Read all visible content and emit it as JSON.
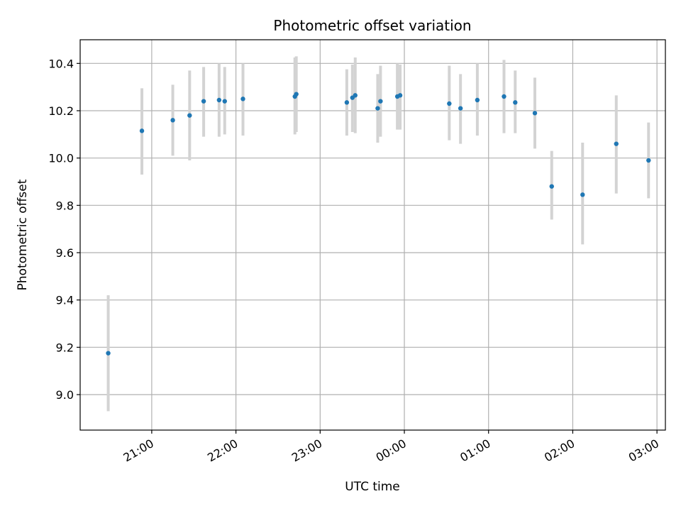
{
  "chart_data": {
    "type": "scatter",
    "title": "Photometric offset variation",
    "xlabel": "UTC time",
    "ylabel": "Photometric offset",
    "xlim": [
      "20:09",
      "03:06"
    ],
    "ylim": [
      8.85,
      10.5
    ],
    "x_ticks": [
      "21:00",
      "22:00",
      "23:00",
      "00:00",
      "01:00",
      "02:00",
      "03:00"
    ],
    "y_ticks": [
      "9.0",
      "9.2",
      "9.4",
      "9.6",
      "9.8",
      "10.0",
      "10.2",
      "10.4"
    ],
    "grid": true,
    "marker_color": "#1f77b4",
    "errorbar_color": "#d3d3d3",
    "points": [
      {
        "t": "20:29",
        "y": 9.175,
        "lo": 8.93,
        "hi": 9.42
      },
      {
        "t": "20:53",
        "y": 10.115,
        "lo": 9.93,
        "hi": 10.295
      },
      {
        "t": "21:15",
        "y": 10.16,
        "lo": 10.01,
        "hi": 10.31
      },
      {
        "t": "21:27",
        "y": 10.18,
        "lo": 9.99,
        "hi": 10.37
      },
      {
        "t": "21:37",
        "y": 10.24,
        "lo": 10.09,
        "hi": 10.385
      },
      {
        "t": "21:48",
        "y": 10.245,
        "lo": 10.09,
        "hi": 10.4
      },
      {
        "t": "21:52",
        "y": 10.24,
        "lo": 10.1,
        "hi": 10.385
      },
      {
        "t": "22:05",
        "y": 10.25,
        "lo": 10.095,
        "hi": 10.4
      },
      {
        "t": "22:42",
        "y": 10.26,
        "lo": 10.1,
        "hi": 10.425
      },
      {
        "t": "22:43",
        "y": 10.27,
        "lo": 10.11,
        "hi": 10.43
      },
      {
        "t": "23:19",
        "y": 10.235,
        "lo": 10.095,
        "hi": 10.375
      },
      {
        "t": "23:23",
        "y": 10.255,
        "lo": 10.11,
        "hi": 10.395
      },
      {
        "t": "23:25",
        "y": 10.265,
        "lo": 10.105,
        "hi": 10.425
      },
      {
        "t": "23:41",
        "y": 10.21,
        "lo": 10.065,
        "hi": 10.355
      },
      {
        "t": "23:43",
        "y": 10.24,
        "lo": 10.09,
        "hi": 10.39
      },
      {
        "t": "23:55",
        "y": 10.26,
        "lo": 10.12,
        "hi": 10.4
      },
      {
        "t": "23:57",
        "y": 10.265,
        "lo": 10.12,
        "hi": 10.395
      },
      {
        "t": "00:32",
        "y": 10.23,
        "lo": 10.075,
        "hi": 10.39
      },
      {
        "t": "00:40",
        "y": 10.21,
        "lo": 10.06,
        "hi": 10.355
      },
      {
        "t": "00:52",
        "y": 10.245,
        "lo": 10.095,
        "hi": 10.4
      },
      {
        "t": "01:11",
        "y": 10.26,
        "lo": 10.105,
        "hi": 10.415
      },
      {
        "t": "01:19",
        "y": 10.235,
        "lo": 10.105,
        "hi": 10.37
      },
      {
        "t": "01:33",
        "y": 10.19,
        "lo": 10.04,
        "hi": 10.34
      },
      {
        "t": "01:45",
        "y": 9.88,
        "lo": 9.74,
        "hi": 10.03
      },
      {
        "t": "02:07",
        "y": 9.845,
        "lo": 9.635,
        "hi": 10.065
      },
      {
        "t": "02:31",
        "y": 10.06,
        "lo": 9.85,
        "hi": 10.265
      },
      {
        "t": "02:54",
        "y": 9.99,
        "lo": 9.83,
        "hi": 10.15
      }
    ]
  }
}
